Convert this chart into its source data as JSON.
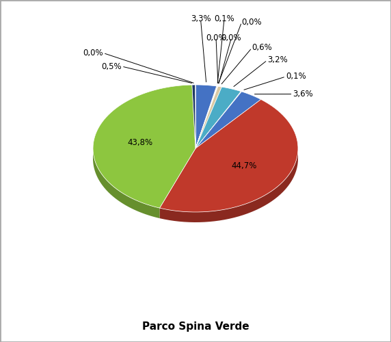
{
  "title": "Parco Spina Verde",
  "slice_data": [
    {
      "label": "3,3%",
      "value": 3.3,
      "color": "#4472C4"
    },
    {
      "label": "0,1%",
      "value": 0.1,
      "color": "#595959"
    },
    {
      "label": "0,0%",
      "value": 0.04,
      "color": "#AAAAAA"
    },
    {
      "label": "0,0%",
      "value": 0.04,
      "color": "#7030A0"
    },
    {
      "label": "0,0%",
      "value": 0.04,
      "color": "#AAAAAA"
    },
    {
      "label": "0,6%",
      "value": 0.6,
      "color": "#D9C9A3"
    },
    {
      "label": "3,2%",
      "value": 3.2,
      "color": "#4BACC6"
    },
    {
      "label": "0,1%",
      "value": 0.1,
      "color": "#D0D0D0"
    },
    {
      "label": "3,6%",
      "value": 3.6,
      "color": "#4472C4"
    },
    {
      "label": "44,7%",
      "value": 44.7,
      "color": "#C0392B"
    },
    {
      "label": "43,8%",
      "value": 43.8,
      "color": "#8DC63F"
    },
    {
      "label": "0,5%",
      "value": 0.5,
      "color": "#1F3864"
    },
    {
      "label": "0,0%",
      "value": 0.04,
      "color": "#808080"
    }
  ],
  "background_color": "#FFFFFF",
  "border_color": "#AAAAAA",
  "title_fontsize": 11,
  "label_fontsize": 8.5
}
